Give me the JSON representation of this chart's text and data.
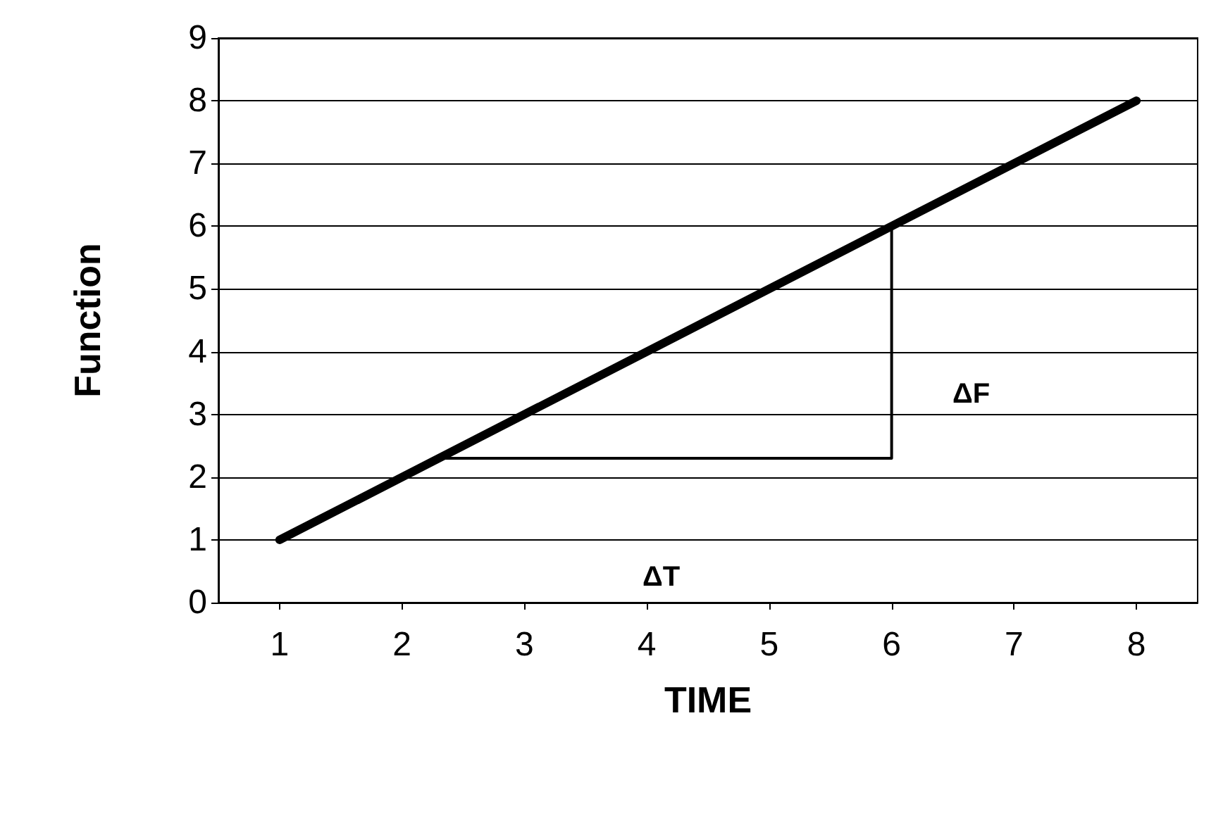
{
  "chart_data": {
    "type": "line",
    "xlabel": "TIME",
    "ylabel": "Function",
    "xlim": [
      0.5,
      8.5
    ],
    "xticks": [
      1,
      2,
      3,
      4,
      5,
      6,
      7,
      8
    ],
    "ylim": [
      0,
      9
    ],
    "yticks": [
      0,
      1,
      2,
      3,
      4,
      5,
      6,
      7,
      8,
      9
    ],
    "grid": "y",
    "marker": "none",
    "line_style": "solid",
    "series": [
      {
        "color": "#000000",
        "x": [
          1,
          8
        ],
        "values": [
          1,
          8
        ]
      },
      {
        "color": "#000000",
        "x": [
          2.35,
          6,
          6
        ],
        "values": [
          2.3,
          2.3,
          6
        ]
      }
    ],
    "annotations": [
      "ΔF",
      "ΔT"
    ]
  }
}
